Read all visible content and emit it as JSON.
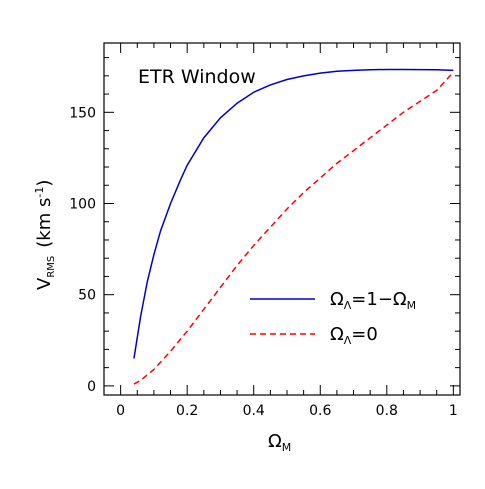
{
  "chart_data": {
    "type": "line",
    "title": "ETR Window",
    "xlabel": {
      "symbol": "Ω",
      "subscript": "M"
    },
    "ylabel": {
      "prefix": "V",
      "subscript": "RMS",
      "unit": "(km s",
      "superscript": "-1",
      "unit_close": ")"
    },
    "xlim": [
      -0.05,
      1.02
    ],
    "ylim": [
      -5,
      188
    ],
    "xticks": [
      0,
      0.2,
      0.4,
      0.6,
      0.8,
      1
    ],
    "xtick_labels": [
      "0",
      "0.2",
      "0.4",
      "0.6",
      "0.8",
      "1"
    ],
    "yticks": [
      0,
      50,
      100,
      150
    ],
    "ytick_labels": [
      "0",
      "50",
      "100",
      "150"
    ],
    "grid": false,
    "legend_position": "lower-right",
    "series": [
      {
        "name": "Ω_Λ=1−Ω_M",
        "legend": {
          "symbol": "Ω",
          "sub": "Λ",
          "rest": "=1−Ω",
          "sub2": "M"
        },
        "color": "#0000cc",
        "style": "solid",
        "x": [
          0.04,
          0.06,
          0.08,
          0.1,
          0.12,
          0.15,
          0.18,
          0.2,
          0.25,
          0.3,
          0.35,
          0.4,
          0.45,
          0.5,
          0.55,
          0.6,
          0.65,
          0.7,
          0.75,
          0.8,
          0.85,
          0.9,
          0.95,
          1.0
        ],
        "y": [
          15,
          38,
          57,
          72,
          85,
          100,
          113,
          121,
          136,
          147,
          155,
          161,
          165,
          168,
          170,
          171.5,
          172.5,
          173,
          173.3,
          173.5,
          173.5,
          173.4,
          173.3,
          173
        ]
      },
      {
        "name": "Ω_Λ=0",
        "legend": {
          "symbol": "Ω",
          "sub": "Λ",
          "rest": "=0",
          "sub2": ""
        },
        "color": "#ff0000",
        "style": "dashed",
        "x": [
          0.04,
          0.06,
          0.08,
          0.1,
          0.12,
          0.15,
          0.2,
          0.25,
          0.3,
          0.35,
          0.4,
          0.45,
          0.5,
          0.55,
          0.6,
          0.65,
          0.7,
          0.75,
          0.8,
          0.85,
          0.9,
          0.95,
          1.0
        ],
        "y": [
          1,
          3,
          6,
          9,
          13,
          19,
          30,
          42,
          54,
          66,
          77,
          87,
          97,
          106,
          114,
          122,
          129,
          136,
          143,
          150,
          156,
          162,
          172
        ]
      }
    ]
  }
}
